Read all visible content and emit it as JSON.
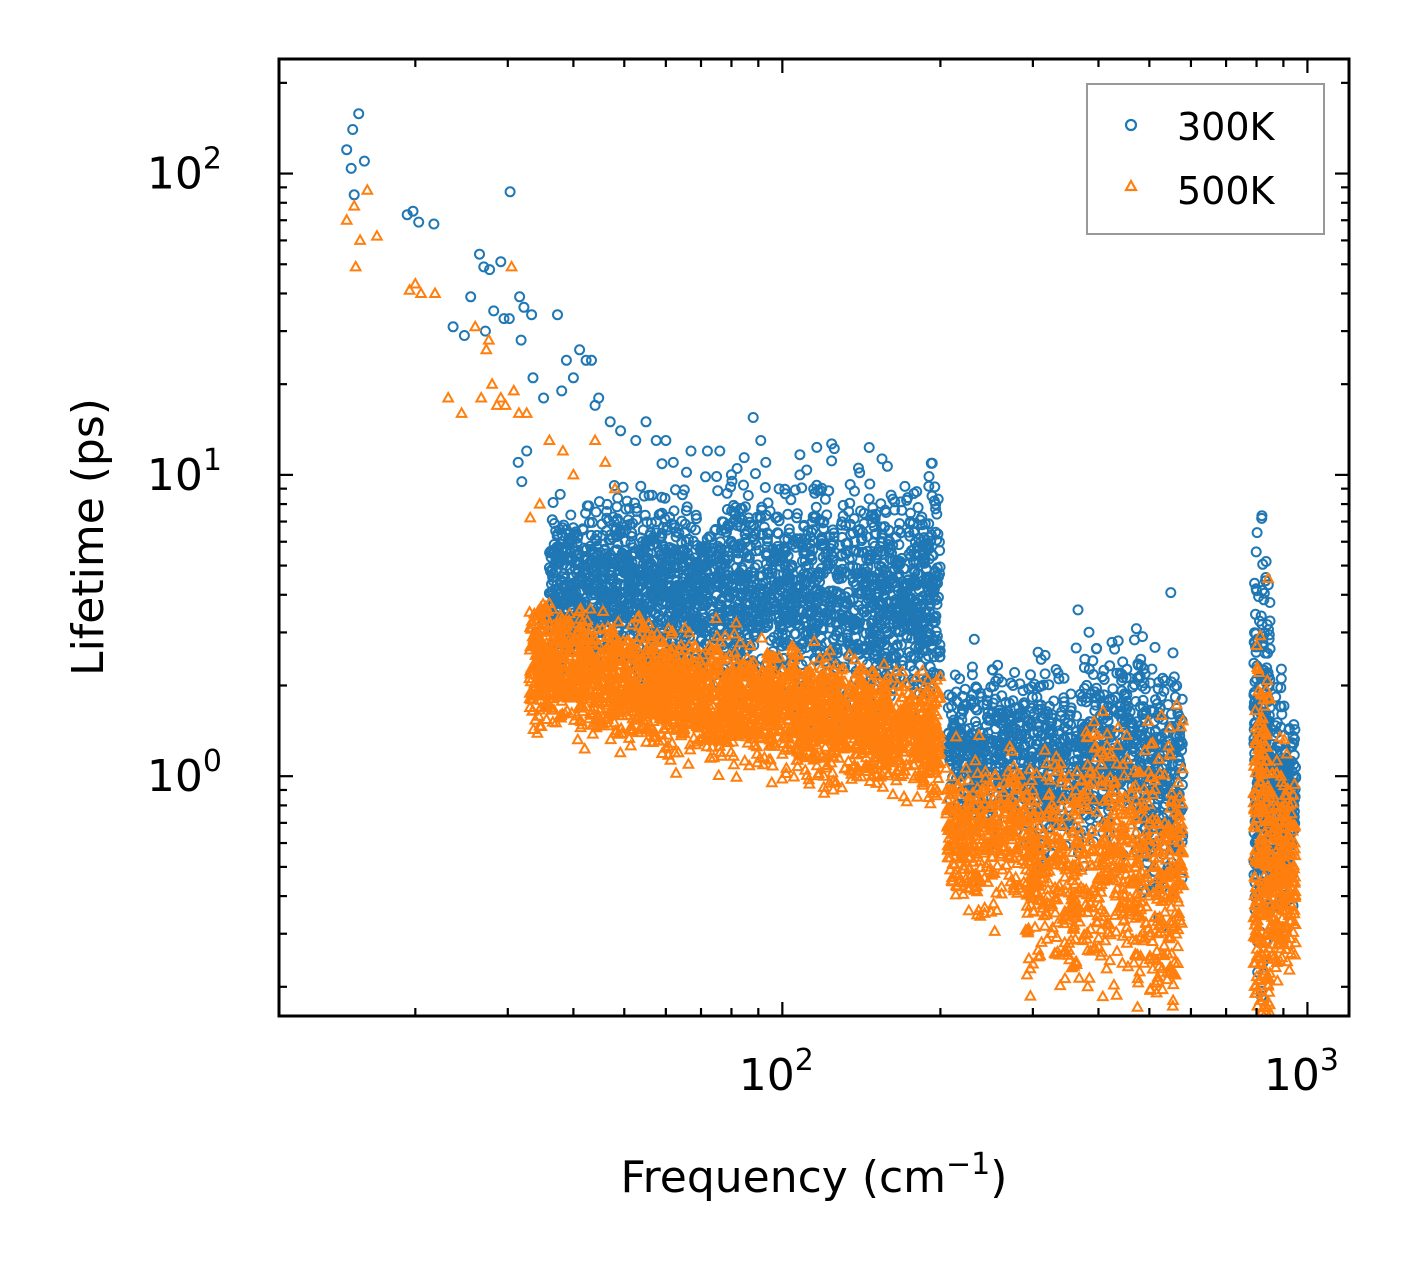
{
  "chart_data": {
    "type": "scatter",
    "xscale": "log",
    "yscale": "log",
    "xlim": [
      11,
      1200
    ],
    "ylim": [
      0.16,
      240
    ],
    "xlabel": "Frequency (cm",
    "xlabel_sup": "−1",
    "xlabel_end": ")",
    "ylabel": "Lifetime (ps)",
    "xticks": [
      {
        "value": 100,
        "base": "10",
        "exp": "2"
      },
      {
        "value": 1000,
        "base": "10",
        "exp": "3"
      }
    ],
    "yticks": [
      {
        "value": 1,
        "base": "10",
        "exp": "0"
      },
      {
        "value": 10,
        "base": "10",
        "exp": "1"
      },
      {
        "value": 100,
        "base": "10",
        "exp": "2"
      }
    ],
    "legend": {
      "position": "upper right",
      "entries": [
        "300K",
        "500K"
      ]
    },
    "series": [
      {
        "name": "300K",
        "marker": "circle",
        "color": "#1f77b4",
        "points": [
          [
            14.8,
            120
          ],
          [
            15.2,
            140
          ],
          [
            15.6,
            158
          ],
          [
            16.0,
            110
          ],
          [
            15.1,
            104
          ],
          [
            15.3,
            85
          ],
          [
            19.3,
            73
          ],
          [
            19.8,
            75
          ],
          [
            20.3,
            69
          ],
          [
            21.7,
            68
          ],
          [
            23.6,
            31
          ],
          [
            24.8,
            29
          ],
          [
            25.5,
            39
          ],
          [
            26.5,
            54
          ],
          [
            27.0,
            49
          ],
          [
            27.7,
            48
          ],
          [
            27.2,
            30
          ],
          [
            28.2,
            35
          ],
          [
            29.1,
            51
          ],
          [
            29.5,
            33
          ],
          [
            30.2,
            33
          ],
          [
            30.3,
            87
          ],
          [
            31.6,
            39
          ],
          [
            31.8,
            28
          ],
          [
            32.2,
            36
          ],
          [
            33.3,
            34
          ],
          [
            33.5,
            21
          ],
          [
            32.6,
            12
          ],
          [
            31.4,
            11
          ],
          [
            31.9,
            9.5
          ],
          [
            35.1,
            18
          ],
          [
            37.3,
            34
          ],
          [
            38.8,
            24
          ],
          [
            38.0,
            19
          ],
          [
            40.0,
            21
          ],
          [
            41.1,
            26
          ],
          [
            42.3,
            24
          ],
          [
            43.3,
            24
          ],
          [
            44.0,
            17
          ],
          [
            44.7,
            18
          ],
          [
            47.0,
            15
          ],
          [
            49.2,
            14
          ],
          [
            52.6,
            13
          ],
          [
            55.0,
            15
          ],
          [
            57.5,
            13
          ],
          [
            60.0,
            13
          ],
          [
            62.0,
            11
          ],
          [
            67.0,
            12
          ],
          [
            72.0,
            12
          ],
          [
            76.0,
            12
          ],
          [
            82.0,
            10.5
          ],
          [
            88.0,
            15.5
          ],
          [
            91.0,
            13
          ],
          [
            93.0,
            11
          ],
          [
            108.0,
            10
          ],
          [
            118.0,
            7.1
          ],
          [
            130.0,
            6.2
          ],
          [
            150.0,
            5.8
          ],
          [
            180.0,
            3.0
          ],
          [
            34.0,
            3.0
          ],
          [
            35.0,
            3.2
          ],
          [
            55.0,
            2.3
          ],
          [
            58.0,
            2.5
          ],
          [
            215.0,
            1.3
          ],
          [
            230.0,
            1.25
          ],
          [
            252.0,
            1.75
          ],
          [
            260.0,
            1.5
          ],
          [
            275.0,
            2.0
          ],
          [
            300.0,
            1.2
          ],
          [
            320.0,
            1.2
          ],
          [
            335.0,
            2.2
          ],
          [
            350.0,
            1.5
          ],
          [
            365.0,
            1.3
          ],
          [
            390.0,
            1.2
          ],
          [
            405.0,
            1.4
          ],
          [
            420.0,
            1.8
          ],
          [
            440.0,
            2.2
          ],
          [
            460.0,
            1.5
          ],
          [
            480.0,
            1.7
          ],
          [
            505.0,
            1.3
          ],
          [
            530.0,
            1.0
          ],
          [
            555.0,
            0.9
          ],
          [
            575.0,
            0.65
          ],
          [
            430.0,
            0.48
          ],
          [
            445.0,
            0.55
          ],
          [
            820.0,
            2.2
          ],
          [
            835.0,
            1.5
          ],
          [
            870.0,
            0.65
          ],
          [
            910.0,
            1.2
          ],
          [
            940.0,
            1.0
          ],
          [
            280.0,
            0.85
          ],
          [
            310.0,
            1.3
          ],
          [
            345.0,
            1.0
          ],
          [
            370.0,
            0.9
          ],
          [
            400.0,
            1.2
          ],
          [
            415.0,
            0.7
          ],
          [
            500.0,
            1.1
          ],
          [
            540.0,
            0.75
          ],
          [
            800.0,
            0.8
          ],
          [
            850.0,
            0.5
          ],
          [
            900.0,
            0.7
          ],
          [
            925.0,
            0.85
          ]
        ],
        "clusters": [
          {
            "x": [
              36,
              200
            ],
            "ylog_top": [
              0.85,
              0.95
            ],
            "ylog_bottom": [
              0.4,
              0.25
            ],
            "n": 2600
          },
          {
            "x": [
              205,
              290
            ],
            "ycenter": 1.25,
            "spread": 0.12,
            "n": 380
          },
          {
            "x": [
              290,
              360
            ],
            "ycenter": 1.1,
            "spread": 0.15,
            "n": 260
          },
          {
            "x": [
              360,
              470
            ],
            "ycenter": 1.3,
            "spread": 0.15,
            "n": 300
          },
          {
            "x": [
              470,
              580
            ],
            "ycenter": 1.0,
            "spread": 0.2,
            "n": 280
          },
          {
            "x": [
              790,
              850
            ],
            "ycenter": 1.15,
            "spread": 0.35,
            "n": 260
          },
          {
            "x": [
              855,
              950
            ],
            "ycenter": 0.85,
            "spread": 0.15,
            "n": 230
          }
        ]
      },
      {
        "name": "500K",
        "marker": "triangle",
        "color": "#ff7f0e",
        "points": [
          [
            14.8,
            70
          ],
          [
            15.3,
            78
          ],
          [
            15.7,
            60
          ],
          [
            16.2,
            88
          ],
          [
            15.4,
            49
          ],
          [
            16.9,
            62
          ],
          [
            19.5,
            41
          ],
          [
            20.0,
            43
          ],
          [
            20.5,
            40
          ],
          [
            21.8,
            40
          ],
          [
            23.1,
            18
          ],
          [
            24.5,
            16
          ],
          [
            26.0,
            31
          ],
          [
            26.7,
            18
          ],
          [
            27.3,
            26
          ],
          [
            27.6,
            28
          ],
          [
            28.0,
            20
          ],
          [
            28.6,
            17
          ],
          [
            29.1,
            18
          ],
          [
            29.7,
            17
          ],
          [
            30.5,
            49
          ],
          [
            30.8,
            19
          ],
          [
            31.5,
            16
          ],
          [
            32.6,
            16
          ],
          [
            33.1,
            7.2
          ],
          [
            34.5,
            8
          ],
          [
            36.0,
            13
          ],
          [
            38.2,
            12
          ],
          [
            40.0,
            10
          ],
          [
            44.0,
            13
          ],
          [
            46.0,
            11
          ],
          [
            48.0,
            9
          ],
          [
            33.5,
            1.8
          ],
          [
            37.5,
            2.2
          ],
          [
            40.0,
            2.3
          ],
          [
            46.0,
            2.2
          ],
          [
            50.0,
            1.8
          ],
          [
            56.0,
            1.4
          ],
          [
            56.8,
            1.35
          ],
          [
            63.0,
            1.6
          ],
          [
            71.0,
            1.5
          ],
          [
            80.0,
            1.9
          ],
          [
            95.0,
            2.2
          ],
          [
            115.0,
            2.8
          ],
          [
            120.0,
            1.0
          ],
          [
            125.0,
            0.9
          ],
          [
            150.0,
            1.5
          ],
          [
            170.0,
            1.2
          ],
          [
            185.0,
            0.95
          ],
          [
            190.0,
            0.85
          ],
          [
            215.0,
            0.65
          ],
          [
            240.0,
            0.7
          ],
          [
            260.0,
            0.55
          ],
          [
            285.0,
            0.6
          ],
          [
            300.0,
            0.5
          ],
          [
            320.0,
            0.4
          ],
          [
            345.0,
            0.28
          ],
          [
            360.0,
            0.35
          ],
          [
            380.0,
            0.3
          ],
          [
            405.0,
            0.6
          ],
          [
            425.0,
            0.8
          ],
          [
            445.0,
            0.35
          ],
          [
            455.0,
            0.3
          ],
          [
            470.0,
            0.5
          ],
          [
            500.0,
            0.4
          ],
          [
            520.0,
            0.3
          ],
          [
            560.0,
            0.35
          ],
          [
            570.0,
            0.5
          ],
          [
            810.0,
            0.25
          ],
          [
            830.0,
            0.4
          ],
          [
            860.0,
            0.3
          ],
          [
            890.0,
            0.5
          ],
          [
            920.0,
            0.45
          ],
          [
            930.0,
            0.35
          ]
        ],
        "clusters": [
          {
            "x": [
              33,
              200
            ],
            "ylog_top": [
              0.55,
              0.3
            ],
            "ylog_bottom": [
              0.2,
              -0.05
            ],
            "n": 2600
          },
          {
            "x": [
              205,
              290
            ],
            "ycenter": 0.65,
            "spread": 0.12,
            "n": 360
          },
          {
            "x": [
              290,
              365
            ],
            "ycenter": 0.5,
            "spread": 0.18,
            "n": 280
          },
          {
            "x": [
              365,
              470
            ],
            "ycenter": 0.55,
            "spread": 0.2,
            "n": 280
          },
          {
            "x": [
              470,
              580
            ],
            "ycenter": 0.48,
            "spread": 0.22,
            "n": 260
          },
          {
            "x": [
              790,
              850
            ],
            "ycenter": 0.5,
            "spread": 0.35,
            "n": 260
          },
          {
            "x": [
              855,
              950
            ],
            "ycenter": 0.48,
            "spread": 0.18,
            "n": 220
          }
        ]
      }
    ]
  }
}
